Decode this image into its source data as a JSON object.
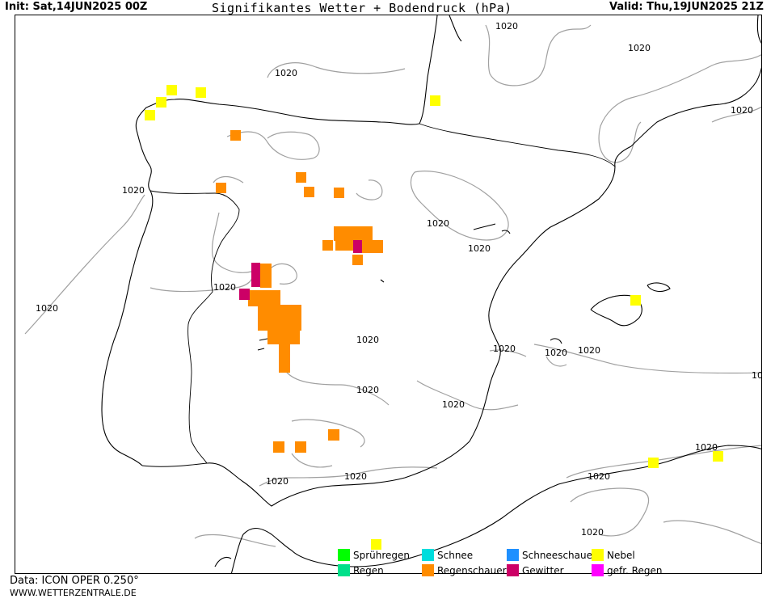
{
  "header": {
    "init": "Init: Sat,14JUN2025 00Z",
    "title": "Signifikantes Wetter +  Bodendruck (hPa)",
    "valid": "Valid: Thu,19JUN2025 21Z"
  },
  "isobar_label": "1020",
  "legend": [
    {
      "label": "Sprühregen",
      "color": "#00ff00"
    },
    {
      "label": "Regen",
      "color": "#00e08a"
    },
    {
      "label": "Schnee",
      "color": "#00dddd"
    },
    {
      "label": "Regenschauer",
      "color": "#ff8c00"
    },
    {
      "label": "Schneeschauer",
      "color": "#1e90ff"
    },
    {
      "label": "Gewitter",
      "color": "#cc0066"
    },
    {
      "label": "Nebel",
      "color": "#ffff00"
    },
    {
      "label": "gefr. Regen",
      "color": "#ff00ff"
    }
  ],
  "footer": {
    "data_source": "Data: ICON OPER 0.250°",
    "website": "WWW.WETTERZENTRALE.DE"
  }
}
